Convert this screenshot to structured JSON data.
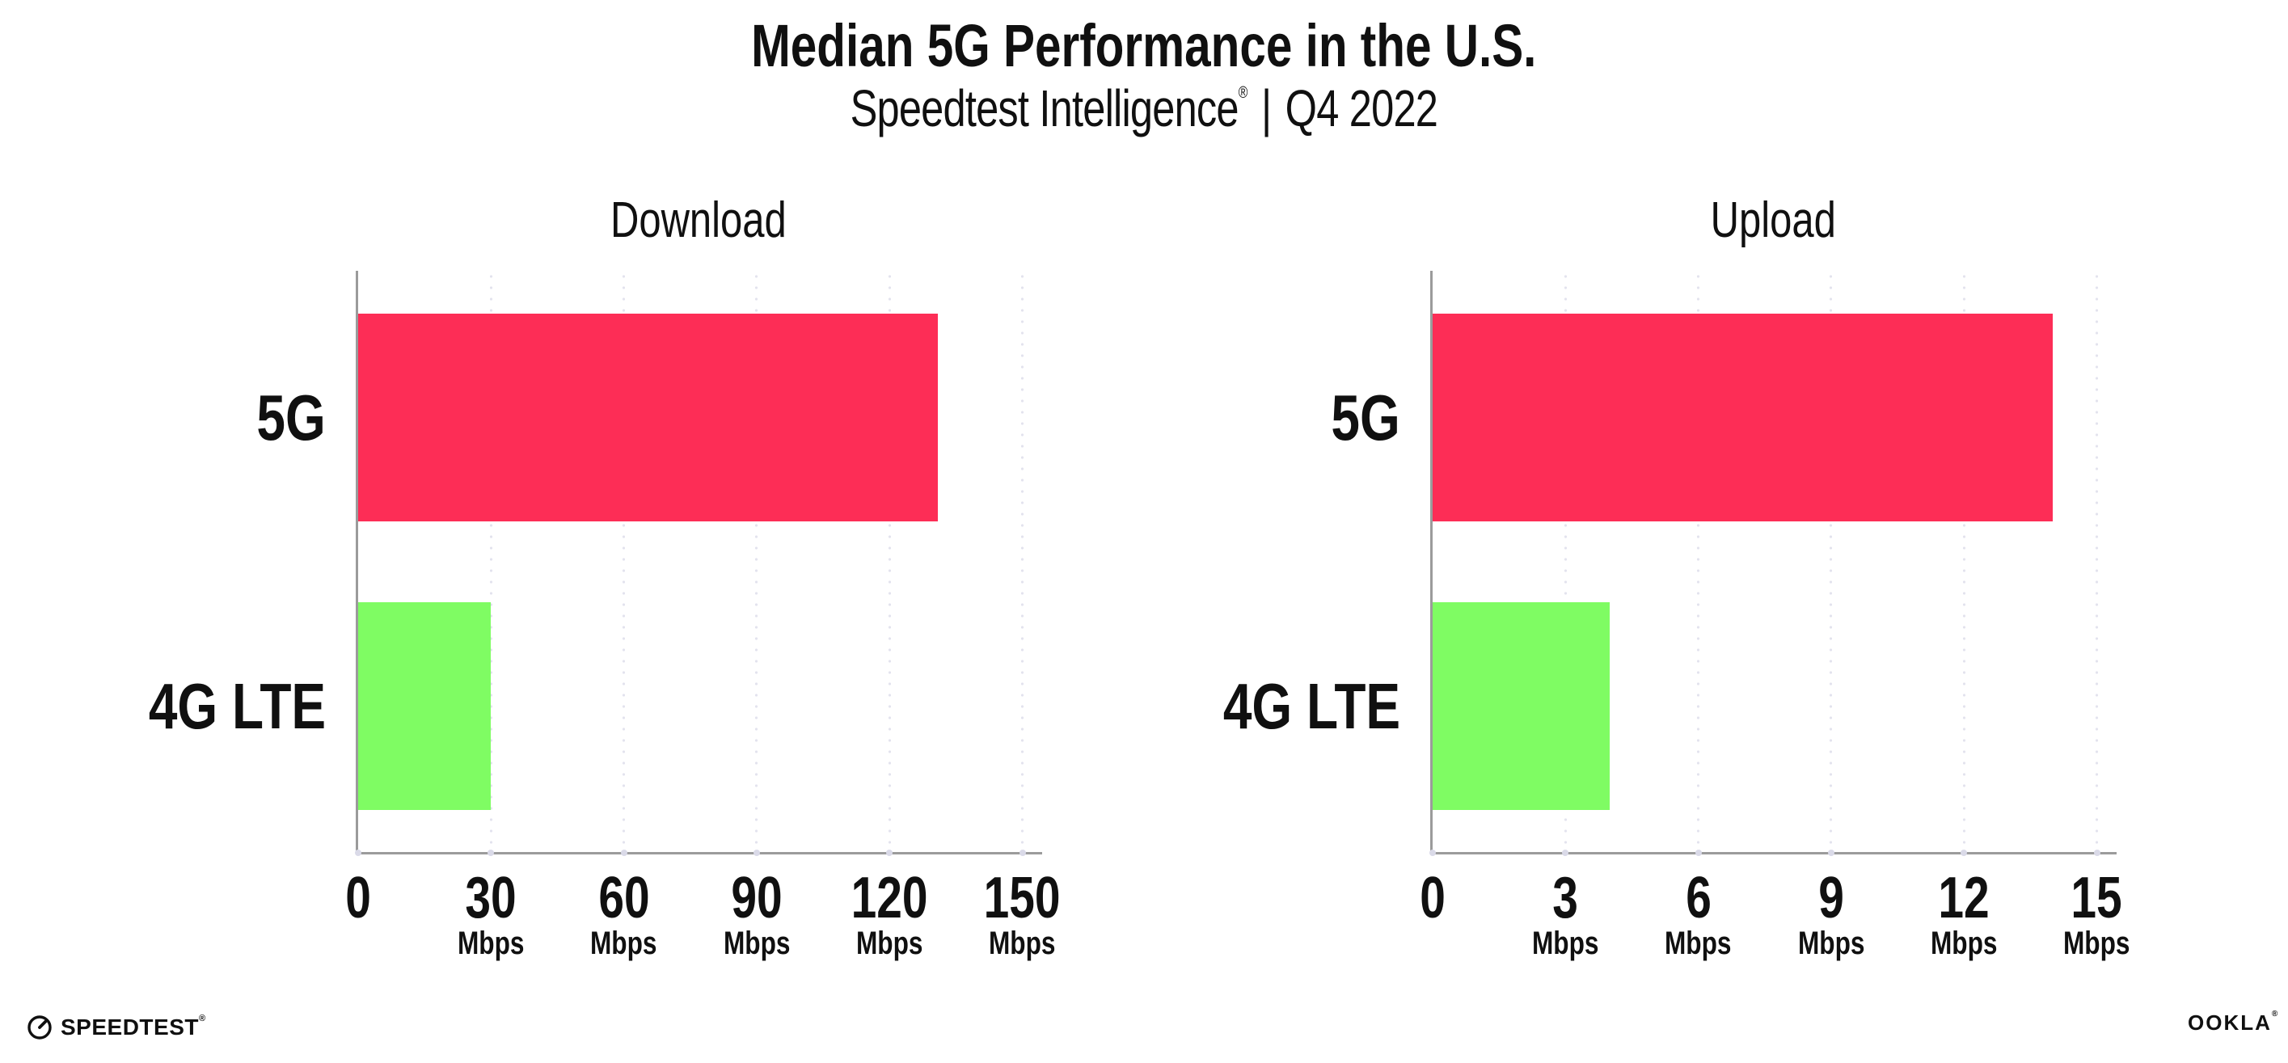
{
  "title": "Median 5G Performance in the U.S.",
  "subtitle": {
    "brand": "Speedtest Intelligence",
    "reg_mark": "®",
    "divider": "|",
    "period": "Q4 2022"
  },
  "footer": {
    "speedtest_logo_text": "SPEEDTEST",
    "speedtest_mark": "®",
    "ookla_logo_text": "OOKLA",
    "ookla_mark": "®"
  },
  "colors": {
    "bar_5g": "#FD2D56",
    "bar_4g_lte": "#7FFC63",
    "gridline": "#E3E3EE",
    "axis": "#9B9B9B",
    "text": "#101010"
  },
  "chart_data": [
    {
      "type": "bar",
      "orientation": "horizontal",
      "title": "Download",
      "categories": [
        "5G",
        "4G LTE"
      ],
      "values": [
        131,
        30
      ],
      "unit": "Mbps",
      "ticks": [
        0,
        30,
        60,
        90,
        120,
        150
      ],
      "tick_unit_label": "Mbps",
      "xlim": [
        0,
        154
      ],
      "grid": "dotted-vertical",
      "legend": "none"
    },
    {
      "type": "bar",
      "orientation": "horizontal",
      "title": "Upload",
      "categories": [
        "5G",
        "4G LTE"
      ],
      "values": [
        14,
        4
      ],
      "unit": "Mbps",
      "ticks": [
        0,
        3,
        6,
        9,
        12,
        15
      ],
      "tick_unit_label": "Mbps",
      "xlim": [
        0,
        15.4
      ],
      "grid": "dotted-vertical",
      "legend": "none"
    }
  ]
}
